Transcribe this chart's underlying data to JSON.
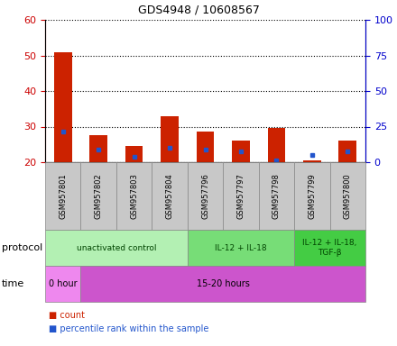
{
  "title": "GDS4948 / 10608567",
  "samples": [
    "GSM957801",
    "GSM957802",
    "GSM957803",
    "GSM957804",
    "GSM957796",
    "GSM957797",
    "GSM957798",
    "GSM957799",
    "GSM957800"
  ],
  "count_values": [
    51,
    27.5,
    24.5,
    33,
    28.5,
    26,
    29.5,
    20.5,
    26
  ],
  "count_base": 20,
  "percentile_values": [
    28.5,
    23.5,
    21.5,
    24,
    23.5,
    23,
    20.5,
    22,
    23
  ],
  "ylim_left": [
    20,
    60
  ],
  "ylim_right": [
    0,
    100
  ],
  "yticks_left": [
    20,
    30,
    40,
    50,
    60
  ],
  "yticks_right": [
    0,
    25,
    50,
    75,
    100
  ],
  "protocol_groups": [
    {
      "label": "unactivated control",
      "start": 0,
      "end": 4,
      "color": "#b3f0b3"
    },
    {
      "label": "IL-12 + IL-18",
      "start": 4,
      "end": 7,
      "color": "#77dd77"
    },
    {
      "label": "IL-12 + IL-18,\nTGF-β",
      "start": 7,
      "end": 9,
      "color": "#44cc44"
    }
  ],
  "time_groups": [
    {
      "label": "0 hour",
      "start": 0,
      "end": 1,
      "color": "#ee88ee"
    },
    {
      "label": "15-20 hours",
      "start": 1,
      "end": 9,
      "color": "#cc55cc"
    }
  ],
  "bar_color_red": "#cc2200",
  "bar_color_blue": "#2255cc",
  "axis_color_left": "#cc0000",
  "axis_color_right": "#0000cc",
  "sample_bg_color": "#c8c8c8",
  "legend_count": "count",
  "legend_percentile": "percentile rank within the sample",
  "protocol_label": "protocol",
  "time_label": "time",
  "bar_width": 0.5
}
